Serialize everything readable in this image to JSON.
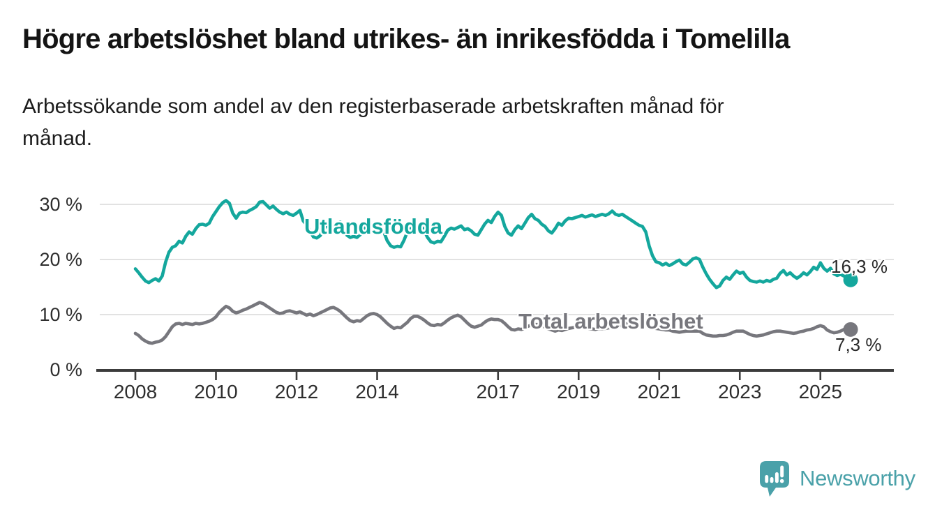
{
  "header": {
    "title": "Högre arbetslöshet bland utrikes- än inrikesfödda i Tomelilla",
    "subtitle": "Arbetssökande som andel av den registerbaserade arbetskraften månad för månad."
  },
  "chart_data": {
    "type": "line",
    "frequency": "monthly",
    "x_range": [
      "2008-01",
      "2025-10"
    ],
    "x_start_year": 2008,
    "ylim": [
      0,
      32
    ],
    "grid": true,
    "grid_color": "#d9d9d9",
    "axis_color": "#3c3c3c",
    "y_ticks": [
      {
        "value": 0,
        "label": "0 %"
      },
      {
        "value": 10,
        "label": "10 %"
      },
      {
        "value": 20,
        "label": "20 %"
      },
      {
        "value": 30,
        "label": "30 %"
      }
    ],
    "x_ticks": [
      {
        "year": 2008,
        "label": "2008"
      },
      {
        "year": 2010,
        "label": "2010"
      },
      {
        "year": 2012,
        "label": "2012"
      },
      {
        "year": 2014,
        "label": "2014"
      },
      {
        "year": 2017,
        "label": "2017"
      },
      {
        "year": 2019,
        "label": "2019"
      },
      {
        "year": 2021,
        "label": "2021"
      },
      {
        "year": 2023,
        "label": "2023"
      },
      {
        "year": 2025,
        "label": "2025"
      }
    ],
    "series": [
      {
        "name": "Utlandsfödda",
        "color": "#14a79d",
        "end_label": "16,3 %",
        "end_value": 16.3,
        "values": [
          18.3,
          17.6,
          16.8,
          16.1,
          15.8,
          16.2,
          16.5,
          16.1,
          17.0,
          19.5,
          21.3,
          22.2,
          22.5,
          23.3,
          23.0,
          24.2,
          25.0,
          24.6,
          25.6,
          26.3,
          26.4,
          26.2,
          26.6,
          27.8,
          28.7,
          29.6,
          30.3,
          30.7,
          30.2,
          28.4,
          27.5,
          28.4,
          28.6,
          28.5,
          28.9,
          29.2,
          29.6,
          30.4,
          30.5,
          29.9,
          29.3,
          29.7,
          29.1,
          28.6,
          28.3,
          28.6,
          28.2,
          28.0,
          28.4,
          28.9,
          27.0,
          26.3,
          25.2,
          24.1,
          23.9,
          24.3,
          25.4,
          26.2,
          26.0,
          25.8,
          26.4,
          26.8,
          25.5,
          24.4,
          24.0,
          24.2,
          24.0,
          24.5,
          25.5,
          26.3,
          26.1,
          26.5,
          26.6,
          26.2,
          25.0,
          23.4,
          22.5,
          22.2,
          22.4,
          22.3,
          23.5,
          25.0,
          25.6,
          25.8,
          26.0,
          26.3,
          25.2,
          24.0,
          23.2,
          23.0,
          23.3,
          23.2,
          24.2,
          25.3,
          25.7,
          25.5,
          25.8,
          26.1,
          25.4,
          25.6,
          25.2,
          24.6,
          24.4,
          25.4,
          26.4,
          27.1,
          26.7,
          27.8,
          28.6,
          28.0,
          26.0,
          24.8,
          24.4,
          25.4,
          26.1,
          25.6,
          26.6,
          27.6,
          28.2,
          27.4,
          27.1,
          26.4,
          26.0,
          25.2,
          24.8,
          25.6,
          26.6,
          26.2,
          27.0,
          27.5,
          27.4,
          27.6,
          27.8,
          28.0,
          27.7,
          27.9,
          28.1,
          27.8,
          28.0,
          28.2,
          28.0,
          28.3,
          28.8,
          28.2,
          28.0,
          28.2,
          27.8,
          27.4,
          27.0,
          26.6,
          26.2,
          26.0,
          25.0,
          22.5,
          20.7,
          19.6,
          19.4,
          19.0,
          19.3,
          18.9,
          19.2,
          19.6,
          19.9,
          19.2,
          19.0,
          19.5,
          20.1,
          20.3,
          20.0,
          18.6,
          17.4,
          16.4,
          15.6,
          14.9,
          15.2,
          16.2,
          16.8,
          16.4,
          17.2,
          17.9,
          17.5,
          17.7,
          16.8,
          16.2,
          16.0,
          15.9,
          16.1,
          15.9,
          16.2,
          16.0,
          16.4,
          16.6,
          17.5,
          18.0,
          17.2,
          17.6,
          17.0,
          16.6,
          17.0,
          17.6,
          17.2,
          17.8,
          18.6,
          18.2,
          19.4,
          18.4,
          17.9,
          18.4,
          17.4,
          17.1,
          17.3,
          17.0,
          16.7,
          16.3
        ]
      },
      {
        "name": "Total arbetslöshet",
        "color": "#77777d",
        "end_label": "7,3 %",
        "end_value": 7.3,
        "values": [
          6.6,
          6.2,
          5.6,
          5.2,
          4.9,
          4.8,
          5.0,
          5.1,
          5.4,
          6.0,
          6.9,
          7.8,
          8.3,
          8.4,
          8.2,
          8.4,
          8.3,
          8.2,
          8.4,
          8.3,
          8.4,
          8.6,
          8.8,
          9.1,
          9.6,
          10.4,
          11.0,
          11.5,
          11.2,
          10.6,
          10.3,
          10.5,
          10.8,
          11.0,
          11.3,
          11.6,
          11.9,
          12.2,
          12.0,
          11.6,
          11.2,
          10.8,
          10.4,
          10.2,
          10.3,
          10.6,
          10.7,
          10.5,
          10.3,
          10.5,
          10.2,
          9.9,
          10.1,
          9.8,
          10.0,
          10.3,
          10.6,
          10.9,
          11.2,
          11.3,
          11.0,
          10.6,
          10.0,
          9.4,
          8.9,
          8.7,
          8.9,
          8.8,
          9.3,
          9.8,
          10.1,
          10.2,
          10.0,
          9.6,
          9.0,
          8.4,
          7.9,
          7.5,
          7.7,
          7.6,
          8.1,
          8.6,
          9.3,
          9.7,
          9.7,
          9.4,
          9.0,
          8.5,
          8.1,
          8.0,
          8.2,
          8.1,
          8.5,
          9.0,
          9.4,
          9.7,
          9.9,
          9.6,
          9.0,
          8.4,
          7.9,
          7.7,
          7.9,
          8.1,
          8.6,
          9.0,
          9.2,
          9.1,
          9.1,
          8.9,
          8.4,
          7.8,
          7.3,
          7.2,
          7.4,
          7.3,
          7.6,
          7.9,
          8.1,
          8.2,
          8.2,
          8.0,
          7.7,
          7.4,
          7.2,
          7.0,
          7.2,
          7.1,
          7.3,
          7.5,
          7.6,
          7.7,
          7.8,
          7.7,
          7.6,
          7.5,
          7.4,
          7.3,
          7.5,
          7.4,
          7.5,
          7.6,
          7.7,
          7.8,
          7.9,
          8.0,
          8.2,
          8.5,
          8.6,
          8.5,
          8.4,
          8.2,
          8.0,
          7.8,
          7.6,
          7.5,
          7.4,
          7.3,
          7.2,
          7.2,
          7.0,
          6.9,
          6.8,
          6.9,
          7.0,
          7.0,
          7.0,
          7.0,
          7.0,
          6.6,
          6.3,
          6.2,
          6.1,
          6.1,
          6.2,
          6.2,
          6.3,
          6.5,
          6.8,
          7.0,
          7.0,
          7.0,
          6.7,
          6.4,
          6.2,
          6.1,
          6.2,
          6.3,
          6.5,
          6.7,
          6.9,
          7.0,
          7.0,
          6.9,
          6.8,
          6.7,
          6.6,
          6.7,
          6.9,
          7.0,
          7.2,
          7.3,
          7.5,
          7.8,
          8.0,
          7.8,
          7.2,
          6.9,
          6.7,
          6.8,
          7.0,
          7.3,
          7.8,
          7.3
        ]
      }
    ]
  },
  "footer": {
    "brand": "Newsworthy",
    "brand_color": "#4aa1a9"
  }
}
